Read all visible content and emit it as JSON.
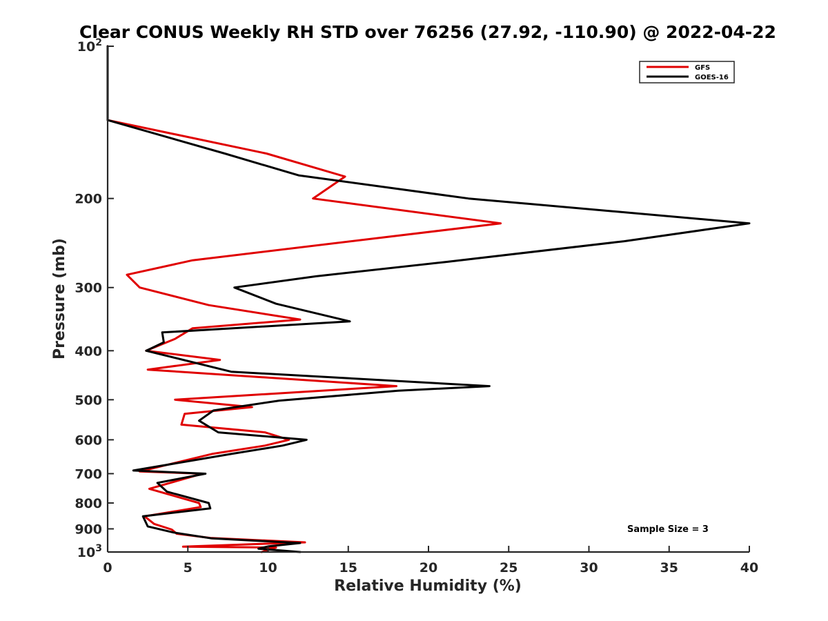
{
  "chart_data": {
    "type": "line",
    "title": "Clear CONUS Weekly RH STD over 76256 (27.92, -110.90) @ 2022-04-22",
    "xlabel": "Relative Humidity (%)",
    "ylabel": "Pressure (mb)",
    "xlim": [
      0,
      40
    ],
    "ylim": [
      100,
      1000
    ],
    "yscale": "log",
    "y_reversed": true,
    "xticks": [
      0,
      5,
      10,
      15,
      20,
      25,
      30,
      35,
      40
    ],
    "yticks": [
      {
        "value": 100,
        "base": "10",
        "exp": "2"
      },
      {
        "value": 200,
        "label": "200"
      },
      {
        "value": 300,
        "label": "300"
      },
      {
        "value": 400,
        "label": "400"
      },
      {
        "value": 500,
        "label": "500"
      },
      {
        "value": 600,
        "label": "600"
      },
      {
        "value": 700,
        "label": "700"
      },
      {
        "value": 800,
        "label": "800"
      },
      {
        "value": 900,
        "label": "900"
      },
      {
        "value": 1000,
        "base": "10",
        "exp": "3"
      }
    ],
    "legend_position": "top-right",
    "series": [
      {
        "name": "GFS",
        "color": "#e00000",
        "points": [
          {
            "x": 0.0,
            "y": 100
          },
          {
            "x": 0.0,
            "y": 140
          },
          {
            "x": 9.9,
            "y": 163
          },
          {
            "x": 14.8,
            "y": 181
          },
          {
            "x": 12.8,
            "y": 200
          },
          {
            "x": 24.5,
            "y": 224
          },
          {
            "x": 5.3,
            "y": 265
          },
          {
            "x": 1.2,
            "y": 283
          },
          {
            "x": 2.0,
            "y": 300
          },
          {
            "x": 6.3,
            "y": 325
          },
          {
            "x": 12.0,
            "y": 347
          },
          {
            "x": 5.3,
            "y": 361
          },
          {
            "x": 4.2,
            "y": 379
          },
          {
            "x": 2.4,
            "y": 400
          },
          {
            "x": 7.0,
            "y": 417
          },
          {
            "x": 2.5,
            "y": 436
          },
          {
            "x": 18.0,
            "y": 470
          },
          {
            "x": 4.2,
            "y": 500
          },
          {
            "x": 9.0,
            "y": 517
          },
          {
            "x": 4.8,
            "y": 533
          },
          {
            "x": 4.6,
            "y": 560
          },
          {
            "x": 9.8,
            "y": 580
          },
          {
            "x": 11.3,
            "y": 600
          },
          {
            "x": 9.8,
            "y": 616
          },
          {
            "x": 6.5,
            "y": 640
          },
          {
            "x": 2.0,
            "y": 693
          },
          {
            "x": 5.9,
            "y": 700
          },
          {
            "x": 2.6,
            "y": 750
          },
          {
            "x": 5.7,
            "y": 800
          },
          {
            "x": 5.8,
            "y": 815
          },
          {
            "x": 2.3,
            "y": 850
          },
          {
            "x": 2.9,
            "y": 880
          },
          {
            "x": 4.0,
            "y": 903
          },
          {
            "x": 4.3,
            "y": 920
          },
          {
            "x": 6.4,
            "y": 938
          },
          {
            "x": 12.3,
            "y": 957
          },
          {
            "x": 4.7,
            "y": 976
          },
          {
            "x": 10.5,
            "y": 980
          },
          {
            "x": 9.6,
            "y": 1000
          }
        ]
      },
      {
        "name": "GOES-16",
        "color": "#000000",
        "points": [
          {
            "x": 0.0,
            "y": 100
          },
          {
            "x": 0.0,
            "y": 140
          },
          {
            "x": 7.3,
            "y": 163
          },
          {
            "x": 11.9,
            "y": 180
          },
          {
            "x": 22.5,
            "y": 200
          },
          {
            "x": 40.0,
            "y": 224
          },
          {
            "x": 32.2,
            "y": 243
          },
          {
            "x": 21.1,
            "y": 267
          },
          {
            "x": 13.0,
            "y": 285
          },
          {
            "x": 7.9,
            "y": 300
          },
          {
            "x": 10.5,
            "y": 323
          },
          {
            "x": 15.1,
            "y": 350
          },
          {
            "x": 3.4,
            "y": 368
          },
          {
            "x": 3.5,
            "y": 385
          },
          {
            "x": 2.4,
            "y": 400
          },
          {
            "x": 7.7,
            "y": 440
          },
          {
            "x": 23.8,
            "y": 470
          },
          {
            "x": 18.1,
            "y": 480
          },
          {
            "x": 10.7,
            "y": 502
          },
          {
            "x": 6.6,
            "y": 525
          },
          {
            "x": 5.7,
            "y": 550
          },
          {
            "x": 6.9,
            "y": 580
          },
          {
            "x": 12.4,
            "y": 600
          },
          {
            "x": 10.9,
            "y": 616
          },
          {
            "x": 7.7,
            "y": 640
          },
          {
            "x": 1.6,
            "y": 690
          },
          {
            "x": 6.1,
            "y": 700
          },
          {
            "x": 3.1,
            "y": 730
          },
          {
            "x": 3.7,
            "y": 760
          },
          {
            "x": 6.3,
            "y": 800
          },
          {
            "x": 6.4,
            "y": 820
          },
          {
            "x": 2.2,
            "y": 850
          },
          {
            "x": 2.5,
            "y": 890
          },
          {
            "x": 4.1,
            "y": 915
          },
          {
            "x": 6.5,
            "y": 940
          },
          {
            "x": 12.0,
            "y": 960
          },
          {
            "x": 10.0,
            "y": 975
          },
          {
            "x": 9.4,
            "y": 985
          },
          {
            "x": 12.0,
            "y": 1000
          }
        ]
      }
    ],
    "annotations": [
      "Sample Size = 3"
    ]
  }
}
